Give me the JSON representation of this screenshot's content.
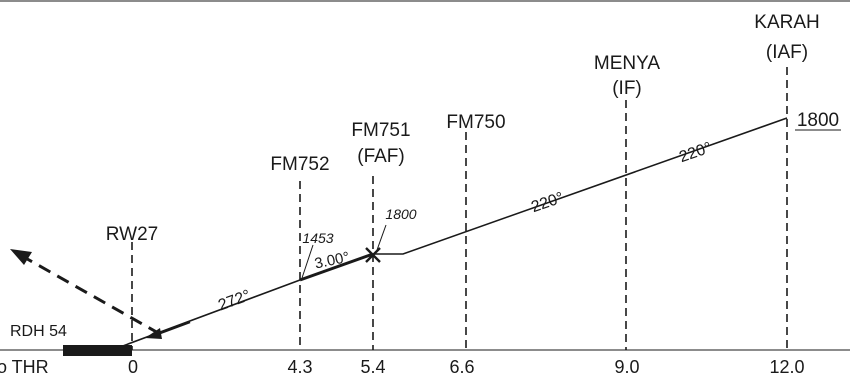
{
  "fixes": [
    {
      "lines": [
        "RW27"
      ],
      "distance": "0"
    },
    {
      "lines": [
        "FM752"
      ],
      "distance": "4.3"
    },
    {
      "lines": [
        "FM751",
        "(FAF)"
      ],
      "distance": "5.4"
    },
    {
      "lines": [
        "FM750"
      ],
      "distance": "6.6"
    },
    {
      "lines": [
        "MENYA",
        "(IF)"
      ],
      "distance": "9.0"
    },
    {
      "lines": [
        "KARAH",
        "(IAF)"
      ],
      "distance": "12.0"
    }
  ],
  "distance_prefix": "o THR",
  "rdh_label": "RDH 54",
  "tracks": {
    "final": "272°",
    "intermediate": "220°",
    "initial": "220°"
  },
  "glide_angle": "3.00°",
  "altitudes": {
    "fm752": "1453",
    "faf": "1800",
    "iaf": "1800"
  },
  "colors": {
    "ink": "#1a1a1a",
    "background": "#ffffff"
  }
}
